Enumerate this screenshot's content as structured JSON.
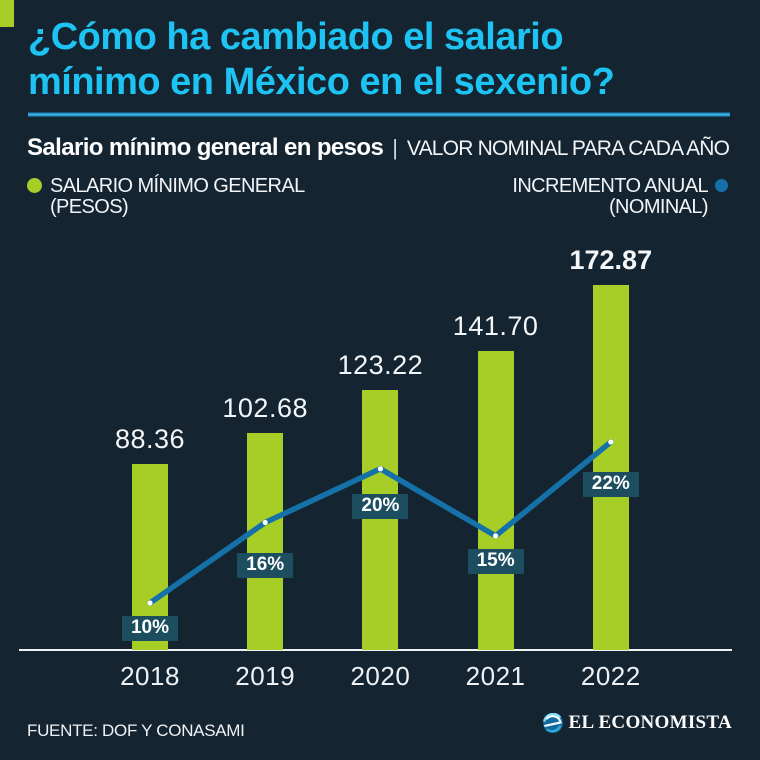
{
  "header": {
    "title_line1": "¿Cómo ha cambiado el salario",
    "title_line2": "mínimo en México en el sexenio?",
    "subtitle_bold": "Salario mínimo general en pesos",
    "subtitle_sep": "|",
    "subtitle_light": "VALOR NOMINAL PARA CADA AÑO"
  },
  "legend": {
    "bars_line1": "SALARIO MÍNIMO GENERAL",
    "bars_line2": "(PESOS)",
    "line_line1": "INCREMENTO ANUAL",
    "line_line2": "(NOMINAL)"
  },
  "chart_data": {
    "type": "bar",
    "categories": [
      "2018",
      "2019",
      "2020",
      "2021",
      "2022"
    ],
    "series": [
      {
        "name": "SALARIO MÍNIMO GENERAL (PESOS)",
        "type": "bar",
        "values": [
          88.36,
          102.68,
          123.22,
          141.7,
          172.87
        ],
        "labels": [
          "88.36",
          "102.68",
          "123.22",
          "141.70",
          "172.87"
        ],
        "color": "#a6ce27"
      },
      {
        "name": "INCREMENTO ANUAL (NOMINAL)",
        "type": "line",
        "values": [
          10,
          16,
          20,
          15,
          22
        ],
        "labels": [
          "10%",
          "16%",
          "20%",
          "15%",
          "22%"
        ],
        "color": "#1571a8"
      }
    ],
    "emphasized_category": "2022",
    "grid": false,
    "legend_position": "top"
  },
  "footer": {
    "source": "FUENTE: DOF Y CONASAMI",
    "brand": "EL ECONOMISTA"
  },
  "colors": {
    "background": "#142430",
    "title_cyan": "#1dc3f2",
    "bar_green": "#a6ce27",
    "line_blue": "#1571a8",
    "pct_box": "#1d4e5f",
    "divider_blue": "#38b7e8"
  }
}
